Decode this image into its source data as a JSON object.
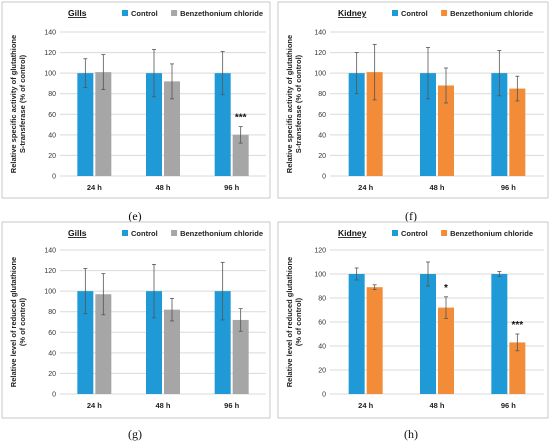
{
  "colors": {
    "control": "#1f9ad6",
    "treated_gills": "#a6a6a6",
    "treated_kidney": "#f28c38"
  },
  "chart_data": [
    {
      "type": "bar",
      "panel": "(e)",
      "title": "Gills",
      "ylabel": [
        "Relative specific activity of glutathione",
        "S-transferase (% of control)"
      ],
      "ylim": [
        0,
        140
      ],
      "yticks": [
        0,
        20,
        40,
        60,
        80,
        100,
        120,
        140
      ],
      "grid": true,
      "legend": "top",
      "categories": [
        "24 h",
        "48 h",
        "96 h"
      ],
      "series": [
        {
          "name": "Control",
          "color": "#1f9ad6",
          "values": [
            100,
            100,
            100
          ],
          "errors": [
            14,
            23,
            21
          ]
        },
        {
          "name": "Benzethonium chloride",
          "color": "#a6a6a6",
          "values": [
            101,
            92,
            40
          ],
          "errors": [
            17,
            17,
            8
          ]
        }
      ],
      "annotations": [
        {
          "category": "96 h",
          "series": 1,
          "text": "***"
        }
      ]
    },
    {
      "type": "bar",
      "panel": "(f)",
      "title": "Kidney",
      "ylabel": [
        "Relative specific activity of glutathione",
        "S-transferase (% of control)"
      ],
      "ylim": [
        0,
        140
      ],
      "yticks": [
        0,
        20,
        40,
        60,
        80,
        100,
        120,
        140
      ],
      "grid": true,
      "legend": "top",
      "categories": [
        "24 h",
        "48 h",
        "96 h"
      ],
      "series": [
        {
          "name": "Control",
          "color": "#1f9ad6",
          "values": [
            100,
            100,
            100
          ],
          "errors": [
            20,
            25,
            22
          ]
        },
        {
          "name": "Benzethonium chloride",
          "color": "#f28c38",
          "values": [
            101,
            88,
            85
          ],
          "errors": [
            27,
            17,
            12
          ]
        }
      ],
      "annotations": []
    },
    {
      "type": "bar",
      "panel": "(g)",
      "title": "Gills",
      "ylabel": [
        "Relative level of reduced glutathione",
        "(% of control)"
      ],
      "ylim": [
        0,
        140
      ],
      "yticks": [
        0,
        20,
        40,
        60,
        80,
        100,
        120,
        140
      ],
      "grid": true,
      "legend": "top",
      "categories": [
        "24 h",
        "48 h",
        "96 h"
      ],
      "series": [
        {
          "name": "Control",
          "color": "#1f9ad6",
          "values": [
            100,
            100,
            100
          ],
          "errors": [
            22,
            26,
            28
          ]
        },
        {
          "name": "Benzethonium chloride",
          "color": "#a6a6a6",
          "values": [
            97,
            82,
            72
          ],
          "errors": [
            20,
            11,
            11
          ]
        }
      ],
      "annotations": []
    },
    {
      "type": "bar",
      "panel": "(h)",
      "title": "Kidney",
      "ylabel": [
        "Relative level of reduced glutathione",
        "(% of control)"
      ],
      "ylim": [
        0,
        120
      ],
      "yticks": [
        0,
        20,
        40,
        60,
        80,
        100,
        120
      ],
      "grid": true,
      "legend": "top",
      "categories": [
        "24 h",
        "48 h",
        "96 h"
      ],
      "series": [
        {
          "name": "Control",
          "color": "#1f9ad6",
          "values": [
            100,
            100,
            100
          ],
          "errors": [
            5,
            10,
            2
          ]
        },
        {
          "name": "Benzethonium chloride",
          "color": "#f28c38",
          "values": [
            89,
            72,
            43
          ],
          "errors": [
            2,
            9,
            7
          ]
        }
      ],
      "annotations": [
        {
          "category": "48 h",
          "series": 1,
          "text": "*"
        },
        {
          "category": "96 h",
          "series": 1,
          "text": "***"
        }
      ]
    }
  ]
}
